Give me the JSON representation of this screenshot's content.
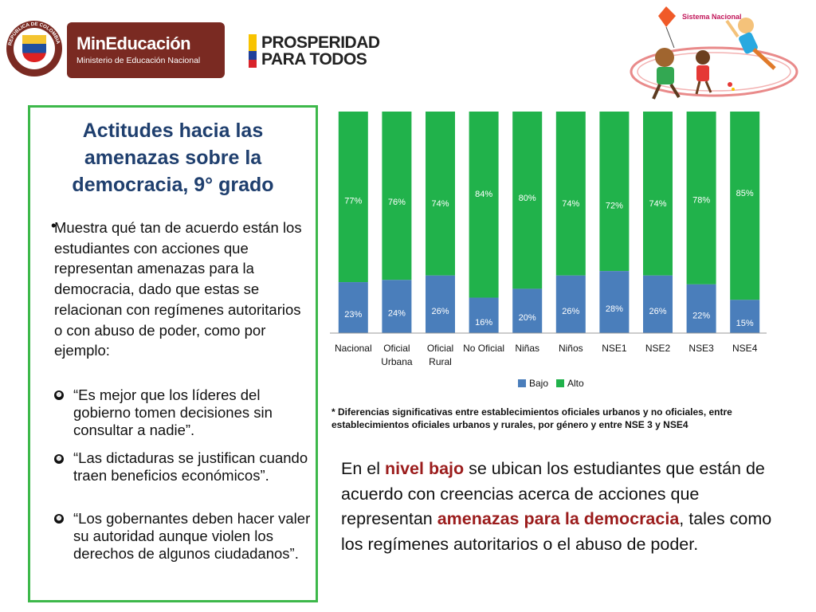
{
  "header": {
    "seal_text": "REPÚBLICA DE COLOMBIA",
    "min_title": "MinEducación",
    "min_subtitle": "Ministerio de Educación Nacional",
    "prosp_line1": "PROSPERIDAD",
    "prosp_line2": "PARA TODOS",
    "sistema_label": "Sistema Nacional"
  },
  "left_box": {
    "title_lines": [
      "Actitudes hacia las",
      "amenazas sobre la",
      "democracia, 9° grado"
    ],
    "intro_bullet": "•",
    "intro": "Muestra qué tan de acuerdo están los estudiantes con acciones que representan amenazas para la democracia, dado que estas se relacionan con regímenes autoritarios o con abuso de poder, como por ejemplo:",
    "quote_bullet": "❿",
    "quotes": [
      " “Es mejor que los líderes del gobierno tomen decisiones sin consultar a nadie”.",
      "“Las dictaduras se justifican cuando traen beneficios económicos”.",
      "“Los gobernantes deben hacer valer su autoridad aunque violen los derechos de algunos ciudadanos”."
    ]
  },
  "chart_data": {
    "type": "bar",
    "stacked": true,
    "percent_stacked": true,
    "categories": [
      "Nacional",
      "Oficial Urbana",
      "Oficial Rural",
      "No Oficial",
      "Niñas",
      "Niños",
      "NSE1",
      "NSE2",
      "NSE3",
      "NSE4"
    ],
    "category_lines": [
      [
        "Nacional"
      ],
      [
        "Oficial",
        "Urbana"
      ],
      [
        "Oficial",
        "Rural"
      ],
      [
        "No Oficial"
      ],
      [
        "Niñas"
      ],
      [
        "Niños"
      ],
      [
        "NSE1"
      ],
      [
        "NSE2"
      ],
      [
        "NSE3"
      ],
      [
        "NSE4"
      ]
    ],
    "series": [
      {
        "name": "Bajo",
        "color": "#4a7ebb",
        "values": [
          23,
          24,
          26,
          16,
          20,
          26,
          28,
          26,
          22,
          15
        ]
      },
      {
        "name": "Alto",
        "color": "#21b24b",
        "values": [
          77,
          76,
          74,
          84,
          80,
          74,
          72,
          74,
          78,
          85
        ]
      }
    ],
    "value_suffix": "%",
    "ylim": [
      0,
      100
    ],
    "legend_position": "bottom",
    "grid": false
  },
  "footnote": "* Diferencias significativas entre establecimientos oficiales urbanos y no oficiales, entre establecimientos oficiales urbanos y rurales, por género  y entre NSE 3  y NSE4",
  "bottom_text": {
    "p1": "En el ",
    "h1": "nivel bajo",
    "p2": " se ubican los estudiantes que están de acuerdo con creencias acerca de acciones que representan ",
    "h2": "amenazas para la democracia",
    "p3": ", tales como los regímenes autoritarios o el abuso de poder."
  }
}
